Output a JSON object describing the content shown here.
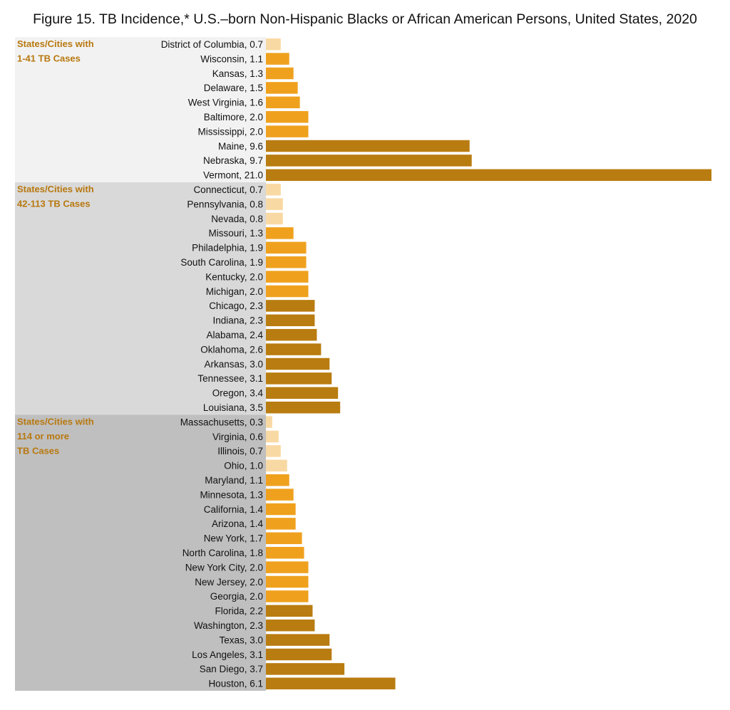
{
  "chart_data": {
    "type": "bar",
    "orientation": "horizontal",
    "title": "Figure 15.  TB Incidence,* U.S.–born Non-Hispanic Blacks or African American Persons, United States, 2020",
    "xlim": [
      0,
      21
    ],
    "grid": false,
    "colors": {
      "light": "#F9D9A3",
      "medium": "#EFA11E",
      "dark": "#B97C10",
      "group_label": "#B8780F"
    },
    "groups": [
      {
        "label_lines": [
          "States/Cities with",
          "1-41 TB Cases"
        ],
        "background": "#F2F2F2",
        "items": [
          {
            "name": "District of Columbia",
            "value": 0.7,
            "shade": "light"
          },
          {
            "name": "Wisconsin",
            "value": 1.1,
            "shade": "medium"
          },
          {
            "name": "Kansas",
            "value": 1.3,
            "shade": "medium"
          },
          {
            "name": "Delaware",
            "value": 1.5,
            "shade": "medium"
          },
          {
            "name": "West Virginia",
            "value": 1.6,
            "shade": "medium"
          },
          {
            "name": "Baltimore",
            "value": 2.0,
            "shade": "medium"
          },
          {
            "name": "Mississippi",
            "value": 2.0,
            "shade": "medium"
          },
          {
            "name": "Maine",
            "value": 9.6,
            "shade": "dark"
          },
          {
            "name": "Nebraska",
            "value": 9.7,
            "shade": "dark"
          },
          {
            "name": "Vermont",
            "value": 21.0,
            "shade": "dark"
          }
        ]
      },
      {
        "label_lines": [
          "States/Cities with",
          "42-113 TB Cases"
        ],
        "background": "#D9D9D9",
        "items": [
          {
            "name": "Connecticut",
            "value": 0.7,
            "shade": "light"
          },
          {
            "name": "Pennsylvania",
            "value": 0.8,
            "shade": "light"
          },
          {
            "name": "Nevada",
            "value": 0.8,
            "shade": "light"
          },
          {
            "name": "Missouri",
            "value": 1.3,
            "shade": "medium"
          },
          {
            "name": "Philadelphia",
            "value": 1.9,
            "shade": "medium"
          },
          {
            "name": "South Carolina",
            "value": 1.9,
            "shade": "medium"
          },
          {
            "name": "Kentucky",
            "value": 2.0,
            "shade": "medium"
          },
          {
            "name": "Michigan",
            "value": 2.0,
            "shade": "medium"
          },
          {
            "name": "Chicago",
            "value": 2.3,
            "shade": "dark"
          },
          {
            "name": "Indiana",
            "value": 2.3,
            "shade": "dark"
          },
          {
            "name": "Alabama",
            "value": 2.4,
            "shade": "dark"
          },
          {
            "name": "Oklahoma",
            "value": 2.6,
            "shade": "dark"
          },
          {
            "name": "Arkansas",
            "value": 3.0,
            "shade": "dark"
          },
          {
            "name": "Tennessee",
            "value": 3.1,
            "shade": "dark"
          },
          {
            "name": "Oregon",
            "value": 3.4,
            "shade": "dark"
          },
          {
            "name": "Louisiana",
            "value": 3.5,
            "shade": "dark"
          }
        ]
      },
      {
        "label_lines": [
          "States/Cities with",
          "114 or more",
          "TB Cases"
        ],
        "background": "#BFBFBF",
        "items": [
          {
            "name": "Massachusetts",
            "value": 0.3,
            "shade": "light"
          },
          {
            "name": "Virginia",
            "value": 0.6,
            "shade": "light"
          },
          {
            "name": "Illinois",
            "value": 0.7,
            "shade": "light"
          },
          {
            "name": "Ohio",
            "value": 1.0,
            "shade": "light"
          },
          {
            "name": "Maryland",
            "value": 1.1,
            "shade": "medium"
          },
          {
            "name": "Minnesota",
            "value": 1.3,
            "shade": "medium"
          },
          {
            "name": "California",
            "value": 1.4,
            "shade": "medium"
          },
          {
            "name": "Arizona",
            "value": 1.4,
            "shade": "medium"
          },
          {
            "name": "New York",
            "value": 1.7,
            "shade": "medium"
          },
          {
            "name": "North Carolina",
            "value": 1.8,
            "shade": "medium"
          },
          {
            "name": "New York City",
            "value": 2.0,
            "shade": "medium"
          },
          {
            "name": "New Jersey",
            "value": 2.0,
            "shade": "medium"
          },
          {
            "name": "Georgia",
            "value": 2.0,
            "shade": "medium"
          },
          {
            "name": "Florida",
            "value": 2.2,
            "shade": "dark"
          },
          {
            "name": "Washington",
            "value": 2.3,
            "shade": "dark"
          },
          {
            "name": "Texas",
            "value": 3.0,
            "shade": "dark"
          },
          {
            "name": "Los Angeles",
            "value": 3.1,
            "shade": "dark"
          },
          {
            "name": "San Diego",
            "value": 3.7,
            "shade": "dark"
          },
          {
            "name": "Houston",
            "value": 6.1,
            "shade": "dark"
          }
        ]
      }
    ]
  }
}
